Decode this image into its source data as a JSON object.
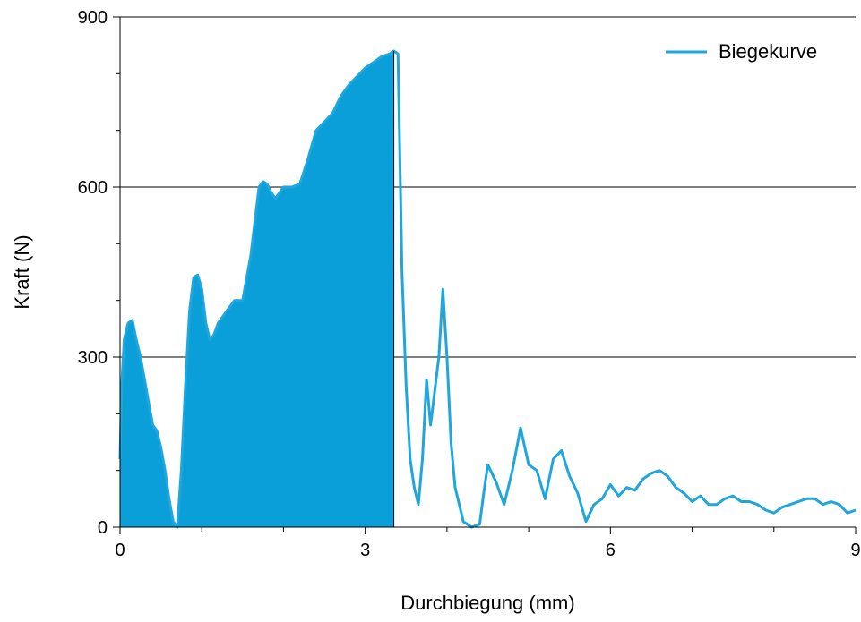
{
  "colors": {
    "series": "#1fa6dc",
    "fill": "#0a9fd8",
    "axis": "#000000",
    "grid": "#000000"
  },
  "chart_data": {
    "type": "line",
    "title": "",
    "xlabel": "Durchbiegung (mm)",
    "ylabel": "Kraft (N)",
    "xlim": [
      0,
      9
    ],
    "ylim": [
      0,
      900
    ],
    "xticks": [
      0,
      3,
      6,
      9
    ],
    "yticks": [
      0,
      300,
      600,
      900
    ],
    "grid": {
      "horizontal": true,
      "vertical": false
    },
    "legend": {
      "position": "top-right",
      "entries": [
        "Biegekurve"
      ]
    },
    "filled_region": {
      "x_from": 0,
      "x_to": 3.35
    },
    "series": [
      {
        "name": "Biegekurve",
        "x": [
          0.0,
          0.02,
          0.05,
          0.08,
          0.1,
          0.15,
          0.2,
          0.25,
          0.3,
          0.35,
          0.4,
          0.45,
          0.5,
          0.55,
          0.6,
          0.65,
          0.7,
          0.75,
          0.8,
          0.85,
          0.9,
          0.95,
          1.0,
          1.05,
          1.1,
          1.15,
          1.2,
          1.3,
          1.4,
          1.5,
          1.6,
          1.7,
          1.75,
          1.8,
          1.85,
          1.9,
          2.0,
          2.1,
          2.2,
          2.3,
          2.4,
          2.5,
          2.6,
          2.7,
          2.8,
          2.9,
          3.0,
          3.1,
          3.2,
          3.3,
          3.35,
          3.4,
          3.45,
          3.5,
          3.55,
          3.6,
          3.65,
          3.7,
          3.75,
          3.8,
          3.85,
          3.9,
          3.95,
          4.0,
          4.05,
          4.1,
          4.15,
          4.2,
          4.3,
          4.4,
          4.45,
          4.5,
          4.6,
          4.7,
          4.8,
          4.9,
          5.0,
          5.1,
          5.2,
          5.3,
          5.4,
          5.5,
          5.6,
          5.7,
          5.8,
          5.9,
          6.0,
          6.1,
          6.2,
          6.3,
          6.4,
          6.5,
          6.6,
          6.7,
          6.8,
          6.9,
          7.0,
          7.1,
          7.2,
          7.3,
          7.4,
          7.5,
          7.6,
          7.7,
          7.8,
          7.9,
          8.0,
          8.1,
          8.2,
          8.3,
          8.4,
          8.5,
          8.6,
          8.7,
          8.8,
          8.9,
          9.0
        ],
        "y": [
          120,
          250,
          330,
          350,
          360,
          365,
          330,
          300,
          260,
          220,
          180,
          170,
          140,
          100,
          50,
          10,
          0,
          100,
          250,
          380,
          440,
          445,
          420,
          360,
          330,
          340,
          360,
          380,
          400,
          400,
          480,
          600,
          610,
          605,
          590,
          580,
          600,
          600,
          605,
          650,
          700,
          715,
          730,
          760,
          780,
          795,
          810,
          820,
          830,
          835,
          840,
          835,
          450,
          250,
          120,
          70,
          40,
          120,
          260,
          180,
          240,
          300,
          420,
          300,
          150,
          70,
          40,
          10,
          0,
          5,
          60,
          110,
          80,
          40,
          100,
          175,
          110,
          100,
          50,
          120,
          135,
          90,
          60,
          10,
          40,
          50,
          75,
          55,
          70,
          65,
          85,
          95,
          100,
          90,
          70,
          60,
          45,
          55,
          40,
          40,
          50,
          55,
          45,
          45,
          40,
          30,
          25,
          35,
          40,
          45,
          50,
          50,
          40,
          45,
          40,
          25,
          30
        ]
      }
    ]
  }
}
